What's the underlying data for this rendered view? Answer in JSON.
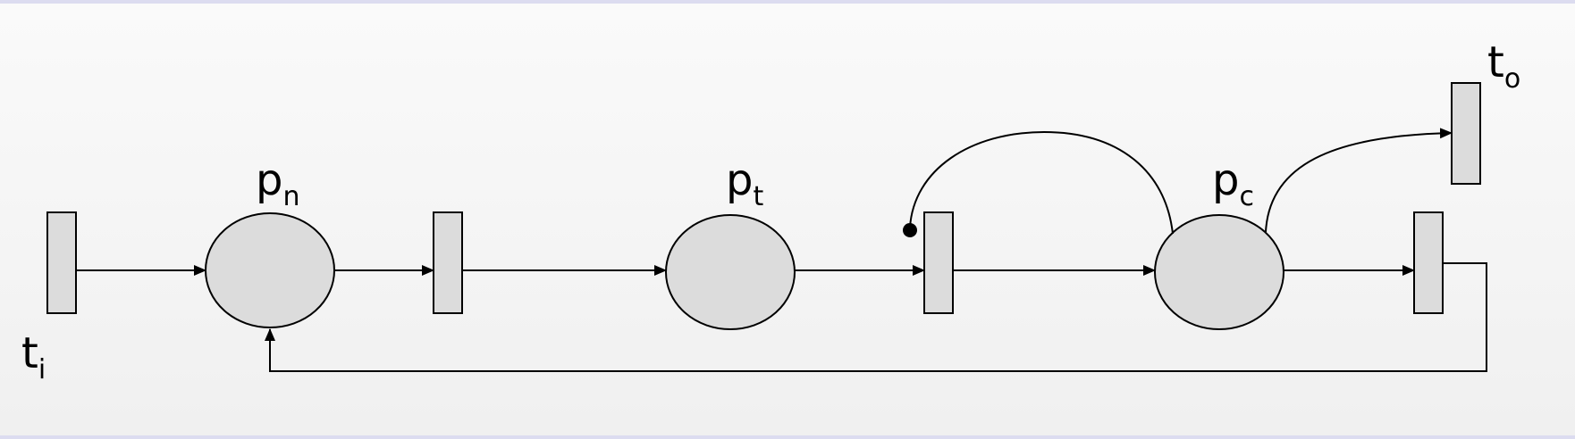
{
  "diagram": {
    "labels": {
      "t_i": {
        "main": "t",
        "sub": "i"
      },
      "p_n": {
        "main": "p",
        "sub": "n"
      },
      "p_t": {
        "main": "p",
        "sub": "t"
      },
      "p_c": {
        "main": "p",
        "sub": "c"
      },
      "t_o": {
        "main": "t",
        "sub": "o"
      }
    },
    "places": [
      {
        "id": "p_n"
      },
      {
        "id": "p_t"
      },
      {
        "id": "p_c"
      }
    ],
    "transitions": [
      {
        "id": "t_i"
      },
      {
        "id": "t_1"
      },
      {
        "id": "t_2"
      },
      {
        "id": "t_3"
      },
      {
        "id": "t_o"
      }
    ],
    "arcs": [
      {
        "from": "t_i",
        "to": "p_n",
        "kind": "normal"
      },
      {
        "from": "p_n",
        "to": "t_1",
        "kind": "normal"
      },
      {
        "from": "t_1",
        "to": "p_t",
        "kind": "normal"
      },
      {
        "from": "p_t",
        "to": "t_2",
        "kind": "normal"
      },
      {
        "from": "t_2",
        "to": "p_c",
        "kind": "normal"
      },
      {
        "from": "p_c",
        "to": "t_3",
        "kind": "normal"
      },
      {
        "from": "t_3",
        "to": "p_n",
        "kind": "normal"
      },
      {
        "from": "p_c",
        "to": "t_2",
        "kind": "inhibitor"
      },
      {
        "from": "p_c",
        "to": "t_o",
        "kind": "normal"
      }
    ],
    "colors": {
      "fill": "#dcdcdc",
      "stroke": "#000000",
      "background": "#f5f5f5",
      "frame": "#dcdcf0"
    }
  }
}
